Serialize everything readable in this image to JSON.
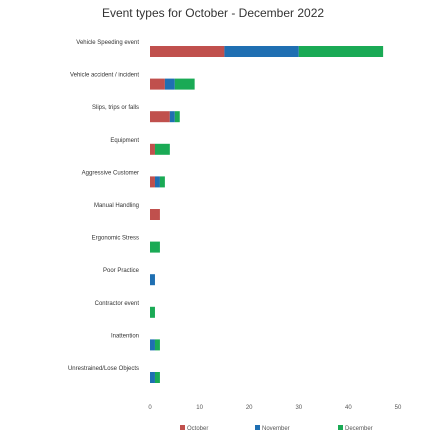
{
  "chart_data": {
    "type": "bar",
    "orientation": "horizontal",
    "stacked": true,
    "title": "Event types for October - December 2022",
    "categories": [
      "Vehicle Speeding event",
      "Vehicle accident / incident",
      "Slips, trips or falls",
      "Equipment",
      "Aggressive Customer",
      "Manual Handling",
      "Ergonomic Stress",
      "Poor Practice",
      "Contractor event",
      "Inattention",
      "Unrestrained/Lose Objects"
    ],
    "series": [
      {
        "name": "October",
        "color": "#c0504d",
        "values": [
          15,
          3,
          4,
          1,
          1,
          2,
          0,
          0,
          0,
          0,
          0
        ]
      },
      {
        "name": "November",
        "color": "#1f6fb2",
        "values": [
          15,
          2,
          1,
          0,
          1,
          0,
          0,
          1,
          0,
          1,
          1
        ]
      },
      {
        "name": "December",
        "color": "#1aaa55",
        "values": [
          17,
          4,
          1,
          3,
          1,
          0,
          2,
          0,
          1,
          1,
          1
        ]
      }
    ],
    "xlim": [
      0,
      50
    ],
    "xticks": [
      0,
      10,
      20,
      30,
      40,
      50
    ],
    "grid": false,
    "legend_position": "bottom"
  }
}
